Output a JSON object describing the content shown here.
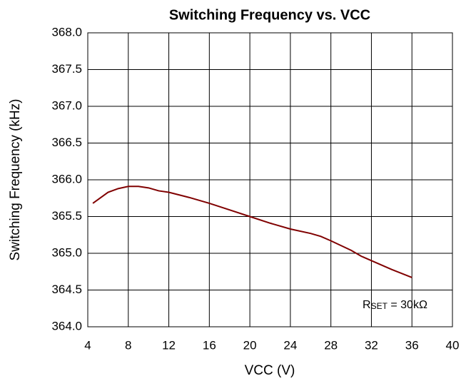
{
  "chart_data": {
    "type": "line",
    "title": "Switching Frequency vs. VCC",
    "xlabel": "VCC (V)",
    "ylabel": "Switching Frequency (kHz)",
    "annotation": {
      "symbol": "R",
      "subscript": "SET",
      "text": " = 30kΩ"
    },
    "xlim": [
      4,
      40
    ],
    "xticks": [
      4,
      8,
      12,
      16,
      20,
      24,
      28,
      32,
      36,
      40
    ],
    "ylim": [
      364,
      368
    ],
    "yticks": [
      {
        "value": 364,
        "label": "364.0"
      },
      364.5,
      {
        "value": 365,
        "label": "365.0"
      },
      365.5,
      {
        "value": 366,
        "label": "366.0"
      },
      366.5,
      {
        "value": 367,
        "label": "367.0"
      },
      367.5,
      {
        "value": 368,
        "label": "368.0"
      }
    ],
    "grid": true,
    "series": [
      {
        "name": "Switching Frequency",
        "color": "#800000",
        "x": [
          4.5,
          6,
          7,
          8,
          9,
          10,
          11,
          12,
          14,
          16,
          18,
          20,
          22,
          24,
          26,
          27,
          28,
          30,
          31,
          32,
          34,
          36
        ],
        "values": [
          365.68,
          365.83,
          365.88,
          365.91,
          365.91,
          365.89,
          365.85,
          365.83,
          365.76,
          365.68,
          365.59,
          365.5,
          365.41,
          365.33,
          365.27,
          365.23,
          365.17,
          365.04,
          364.96,
          364.9,
          364.78,
          364.67
        ]
      }
    ]
  }
}
